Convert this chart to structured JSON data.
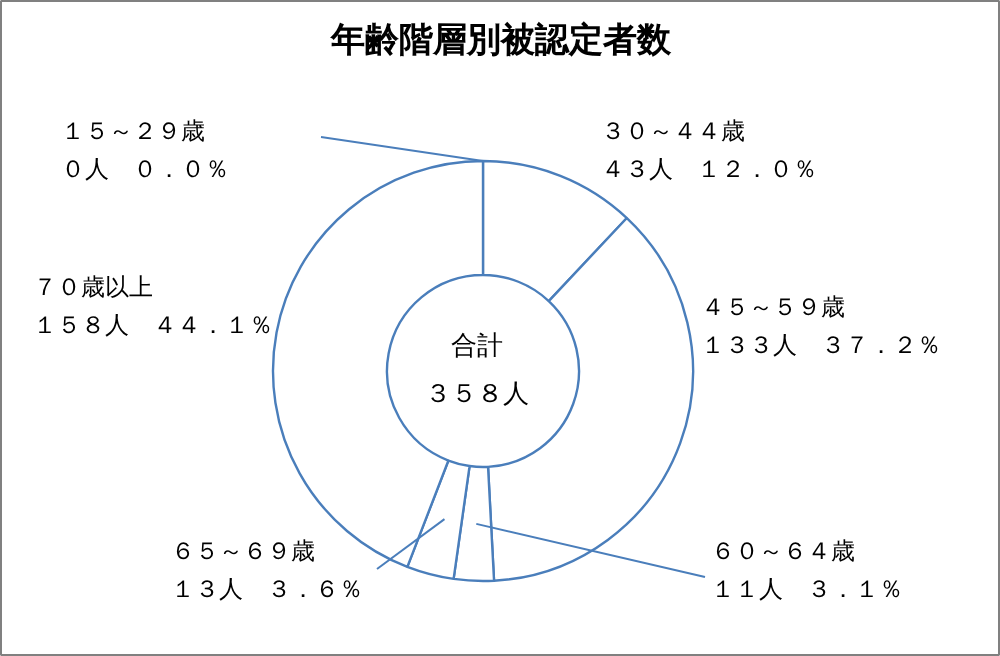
{
  "chart_data": {
    "type": "donut",
    "title": "年齢階層別被認定者数",
    "categories": [
      "１５～２９歳",
      "３０～４４歳",
      "４５～５９歳",
      "６０～６４歳",
      "６５～６９歳",
      "７０歳以上"
    ],
    "values": [
      0,
      43,
      133,
      11,
      13,
      158
    ],
    "value_labels": [
      "０人　０．０％",
      "４３人　１２．０％",
      "１３３人　３７．２％",
      "１１人　３．１％",
      "１３人　３．６％",
      "１５８人　４４．１％"
    ],
    "colors": [
      "#ffffff",
      "#ffffff",
      "#ffffff",
      "#ffffff",
      "#ffffff",
      "#ffffff"
    ],
    "annotations": [
      "合計",
      "３５８人"
    ]
  }
}
